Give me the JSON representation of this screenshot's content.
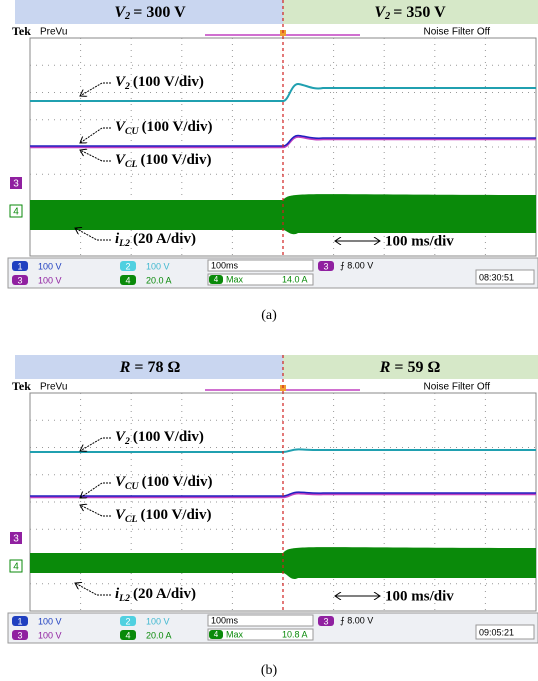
{
  "panels": [
    {
      "header_left": {
        "symbol": "V",
        "subscript": "2",
        "text": "= 300 V"
      },
      "header_right": {
        "symbol": "V",
        "subscript": "2",
        "text": "= 350 V"
      },
      "brand": "Tek",
      "mode": "PreVu",
      "filter": "Noise Filter Off",
      "channel_markers": [
        "3",
        "4"
      ],
      "traces": [
        {
          "symbol": "V",
          "subscript": "2",
          "text": "(100 V/div)"
        },
        {
          "symbol": "V",
          "subscript": "CU",
          "text": "(100 V/div)"
        },
        {
          "symbol": "V",
          "subscript": "CL",
          "text": "(100 V/div)"
        },
        {
          "symbol": "i",
          "subscript": "L2",
          "text": "(20 A/div)"
        }
      ],
      "timebase_label": "100 ms/div",
      "status": {
        "channels": [
          {
            "number": "1",
            "value": "100 V"
          },
          {
            "number": "3",
            "value": "100 V"
          },
          {
            "number": "2",
            "value": "100 V"
          },
          {
            "number": "4",
            "value": "20.0 A"
          }
        ],
        "timebase": "100ms",
        "trigger_channel": "3",
        "trigger": "⨍ 8.00 V",
        "measure_channel": "4",
        "measure": "Max",
        "measure_value": "14.0 A",
        "time": "08:30:51"
      },
      "caption": "(a)"
    },
    {
      "header_left": {
        "symbol": "R",
        "text": "= 78 Ω"
      },
      "header_right": {
        "symbol": "R",
        "text": "= 59 Ω"
      },
      "brand": "Tek",
      "mode": "PreVu",
      "filter": "Noise Filter Off",
      "channel_markers": [
        "3",
        "4"
      ],
      "traces": [
        {
          "symbol": "V",
          "subscript": "2",
          "text": "(100 V/div)"
        },
        {
          "symbol": "V",
          "subscript": "CU",
          "text": "(100 V/div)"
        },
        {
          "symbol": "V",
          "subscript": "CL",
          "text": "(100 V/div)"
        },
        {
          "symbol": "i",
          "subscript": "L2",
          "text": "(20 A/div)"
        }
      ],
      "timebase_label": "100 ms/div",
      "status": {
        "channels": [
          {
            "number": "1",
            "value": "100 V"
          },
          {
            "number": "3",
            "value": "100 V"
          },
          {
            "number": "2",
            "value": "100 V"
          },
          {
            "number": "4",
            "value": "20.0 A"
          }
        ],
        "timebase": "100ms",
        "trigger_channel": "3",
        "trigger": "⨍ 8.00 V",
        "measure_channel": "4",
        "measure": "Max",
        "measure_value": "10.8 A",
        "time": "09:05:21"
      },
      "caption": "(b)"
    }
  ]
}
